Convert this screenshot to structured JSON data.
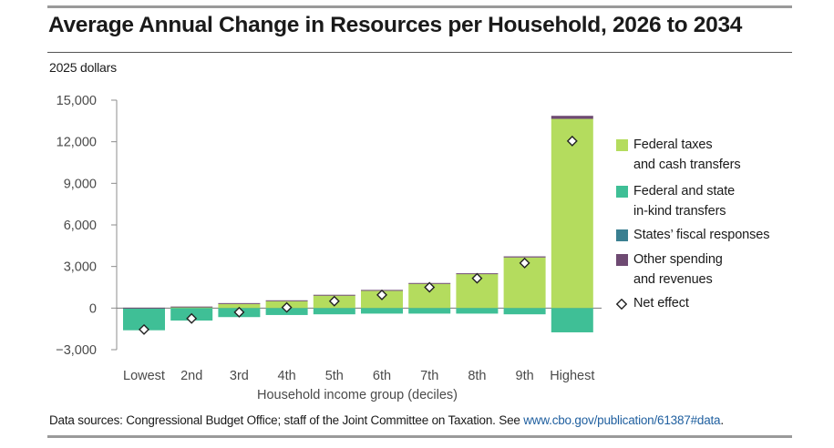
{
  "title": "Average Annual Change in Resources per Household, 2026 to 2034",
  "units_label": "2025 dollars",
  "source": {
    "text": "Data sources: Congressional Budget Office; staff of the Joint Committee on Taxation. See ",
    "link": "www.cbo.gov/publication/61387#data",
    "end": "."
  },
  "colors": {
    "federal_taxes": "#b4dc5e",
    "in_kind": "#3fbf96",
    "states": "#3a7f91",
    "other": "#6e4a72",
    "axis": "#8c8c8c",
    "text": "#4a4a4a"
  },
  "legend": [
    {
      "key": "federal_taxes",
      "label": "Federal taxes\nand cash transfers",
      "icon": "swatch"
    },
    {
      "key": "in_kind",
      "label": "Federal and state\nin-kind transfers",
      "icon": "swatch"
    },
    {
      "key": "states",
      "label": "States’ fiscal responses",
      "icon": "swatch"
    },
    {
      "key": "other",
      "label": "Other spending\nand revenues",
      "icon": "swatch"
    },
    {
      "key": "net",
      "label": "Net effect",
      "icon": "diamond"
    }
  ],
  "chart_data": {
    "type": "bar",
    "stacked": true,
    "title": "Average Annual Change in Resources per Household, 2026 to 2034",
    "ylabel": "2025 dollars",
    "xlabel": "Household income group (deciles)",
    "ylim": [
      -3000,
      15000
    ],
    "yticks": [
      -3000,
      0,
      3000,
      6000,
      9000,
      12000,
      15000
    ],
    "ytick_labels": [
      "−3,000",
      "0",
      "3,000",
      "6,000",
      "9,000",
      "12,000",
      "15,000"
    ],
    "categories": [
      "Lowest",
      "2nd",
      "3rd",
      "4th",
      "5th",
      "6th",
      "7th",
      "8th",
      "9th",
      "Highest"
    ],
    "series": [
      {
        "name": "Federal taxes and cash transfers",
        "key": "federal_taxes",
        "values": [
          0,
          50,
          300,
          500,
          900,
          1250,
          1750,
          2450,
          3650,
          13650
        ]
      },
      {
        "name": "Federal and state in-kind transfers",
        "key": "in_kind",
        "values": [
          -1600,
          -900,
          -650,
          -500,
          -450,
          -400,
          -400,
          -400,
          -450,
          -1750
        ]
      },
      {
        "name": "States’ fiscal responses",
        "key": "states",
        "values": [
          0,
          0,
          0,
          0,
          0,
          0,
          0,
          0,
          0,
          0
        ]
      },
      {
        "name": "Other spending and revenues",
        "key": "other",
        "values": [
          30,
          60,
          60,
          60,
          60,
          60,
          60,
          60,
          80,
          220
        ]
      }
    ],
    "net_effect": [
      -1550,
      -750,
      -300,
      50,
      500,
      950,
      1500,
      2150,
      3250,
      12050
    ],
    "legend_position": "right"
  }
}
